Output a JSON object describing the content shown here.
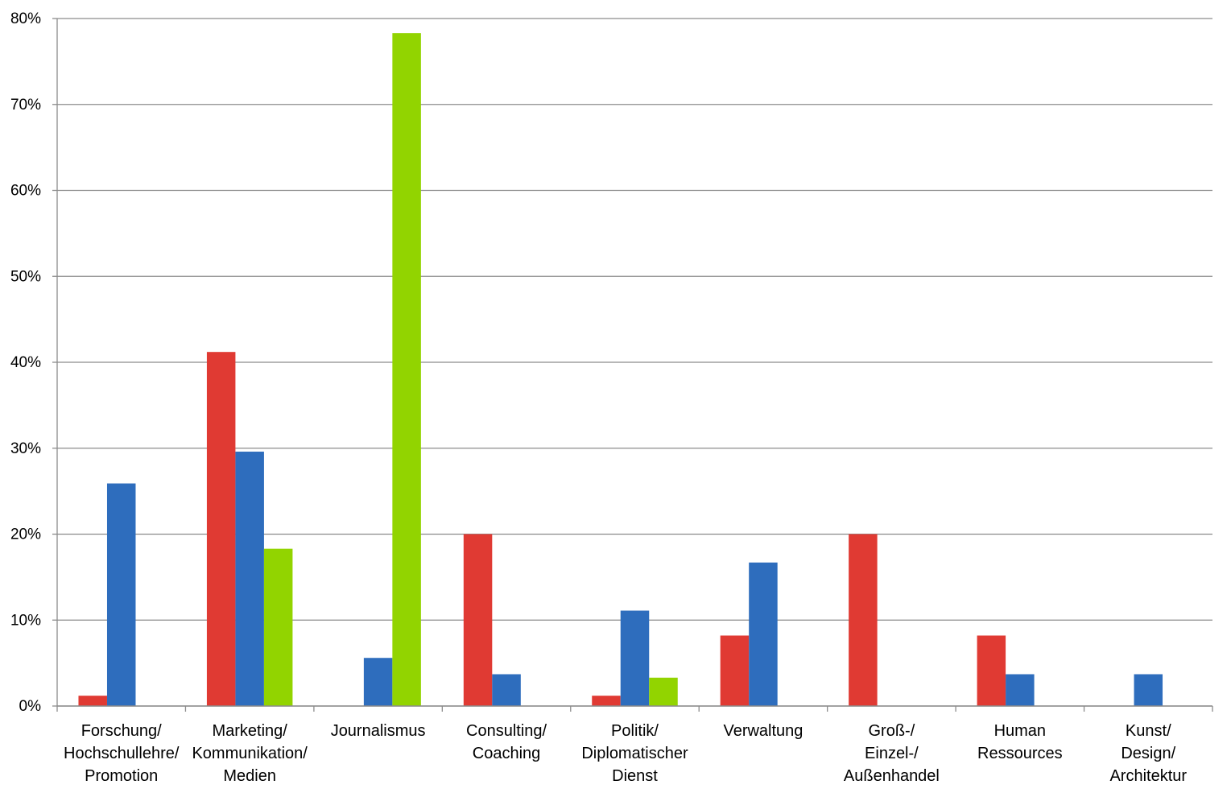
{
  "chart_data": {
    "type": "bar",
    "title": "",
    "xlabel": "",
    "ylabel": "",
    "ylim": [
      0,
      80
    ],
    "y_ticks": [
      "0%",
      "10%",
      "20%",
      "30%",
      "40%",
      "50%",
      "60%",
      "70%",
      "80%"
    ],
    "grid": true,
    "legend": "none",
    "categories": [
      [
        "Forschung/",
        "Hochschullehre/",
        "Promotion"
      ],
      [
        "Marketing/",
        "Kommunikation/",
        "Medien"
      ],
      [
        "Journalismus"
      ],
      [
        "Consulting/",
        "Coaching"
      ],
      [
        "Politik/",
        "Diplomatischer",
        "Dienst"
      ],
      [
        "Verwaltung"
      ],
      [
        "Groß-/",
        "Einzel-/",
        "Außenhandel"
      ],
      [
        "Human",
        "Ressources"
      ],
      [
        "Kunst/",
        "Design/",
        "Architektur"
      ]
    ],
    "series": [
      {
        "color": "#e03a33",
        "values": [
          1.2,
          41.2,
          0,
          20.0,
          1.2,
          8.2,
          20.0,
          8.2,
          0
        ]
      },
      {
        "color": "#2e6dbd",
        "values": [
          25.9,
          29.6,
          5.6,
          3.7,
          11.1,
          16.7,
          0,
          3.7,
          3.7
        ]
      },
      {
        "color": "#92d400",
        "values": [
          0,
          18.3,
          78.3,
          0,
          3.3,
          0,
          0,
          0,
          0
        ]
      }
    ]
  },
  "style": {
    "grid_color": "#8c8c8c",
    "axis_color": "#8c8c8c"
  }
}
